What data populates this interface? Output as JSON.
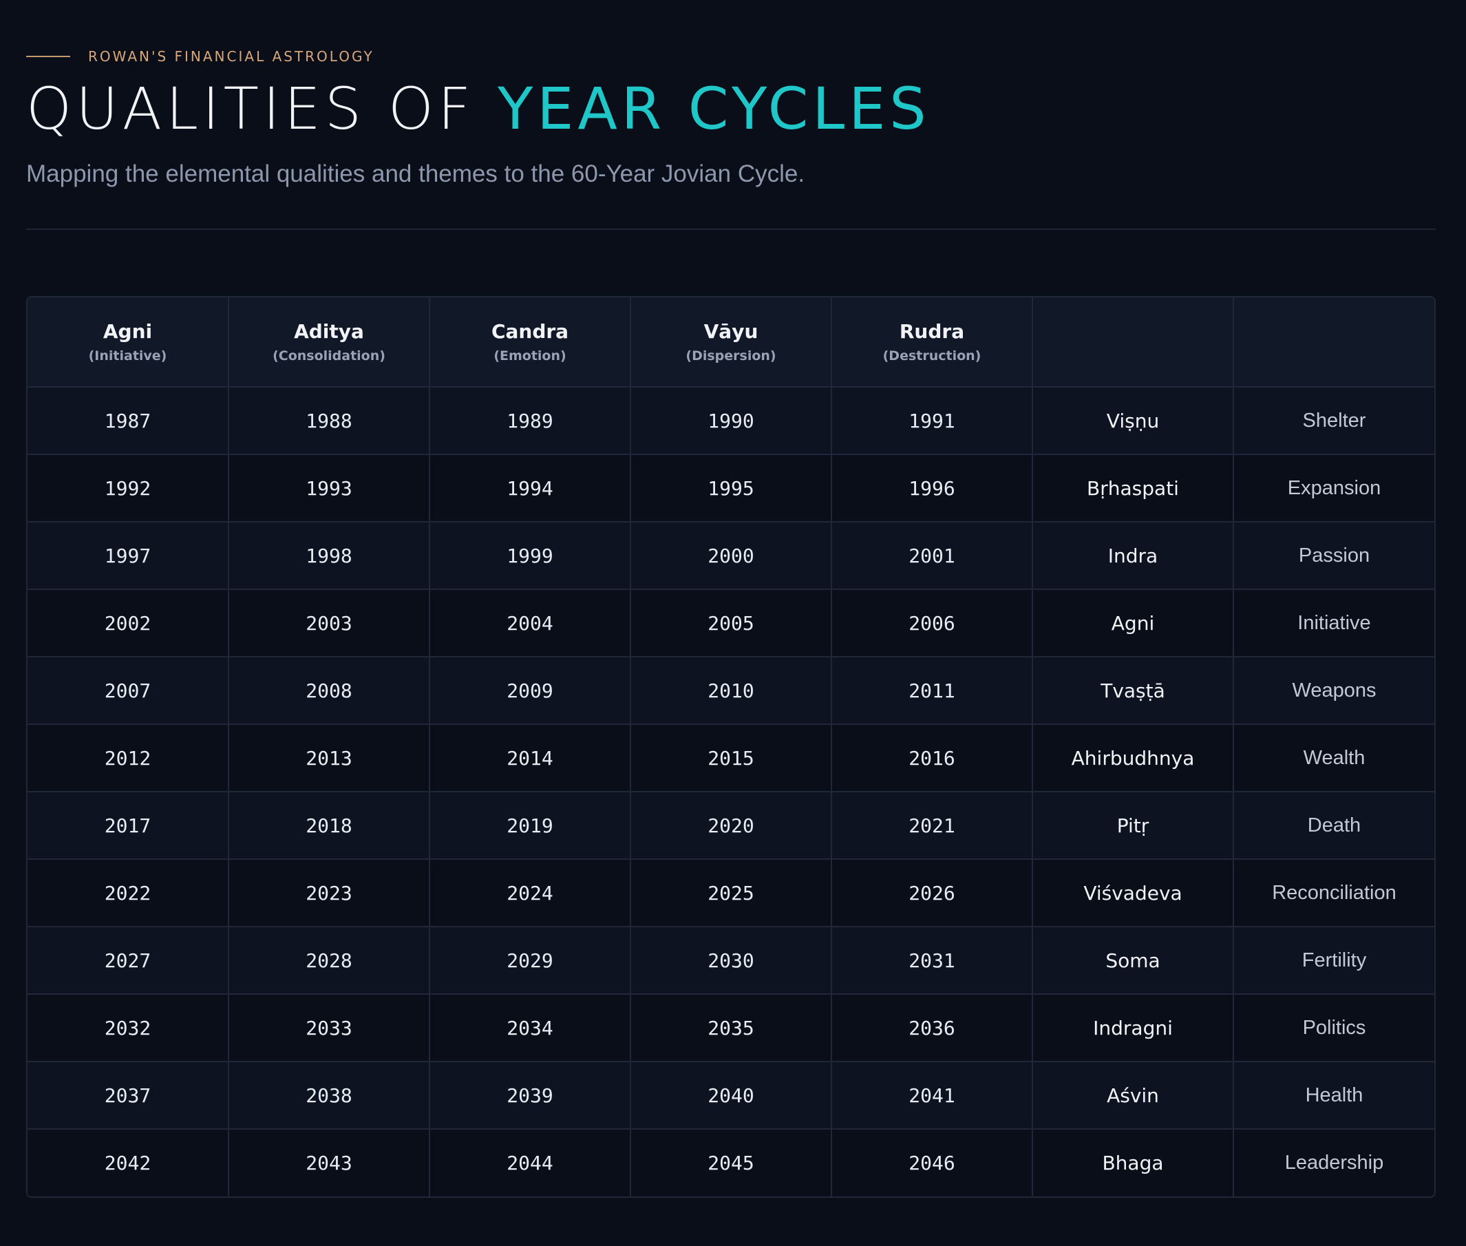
{
  "header": {
    "kicker": "ROWAN'S FINANCIAL ASTROLOGY",
    "title_part1": "QUALITIES OF ",
    "title_part2": "YEAR CYCLES",
    "subtitle": "Mapping the elemental qualities and themes to the 60-Year Jovian Cycle."
  },
  "colors": {
    "accent": "#1fc7c9",
    "kicker": "#d9a77a",
    "background": "#0a0e18"
  },
  "table": {
    "columns": [
      {
        "name": "Agni",
        "sub": "(Initiative)"
      },
      {
        "name": "Aditya",
        "sub": "(Consolidation)"
      },
      {
        "name": "Candra",
        "sub": "(Emotion)"
      },
      {
        "name": "Vāyu",
        "sub": "(Dispersion)"
      },
      {
        "name": "Rudra",
        "sub": "(Destruction)"
      },
      {
        "name": "",
        "sub": ""
      },
      {
        "name": "",
        "sub": ""
      }
    ],
    "rows": [
      {
        "years": [
          "1987",
          "1988",
          "1989",
          "1990",
          "1991"
        ],
        "deity": "Viṣṇu",
        "theme": "Shelter"
      },
      {
        "years": [
          "1992",
          "1993",
          "1994",
          "1995",
          "1996"
        ],
        "deity": "Bṛhaspati",
        "theme": "Expansion"
      },
      {
        "years": [
          "1997",
          "1998",
          "1999",
          "2000",
          "2001"
        ],
        "deity": "Indra",
        "theme": "Passion"
      },
      {
        "years": [
          "2002",
          "2003",
          "2004",
          "2005",
          "2006"
        ],
        "deity": "Agni",
        "theme": "Initiative"
      },
      {
        "years": [
          "2007",
          "2008",
          "2009",
          "2010",
          "2011"
        ],
        "deity": "Tvaṣṭā",
        "theme": "Weapons"
      },
      {
        "years": [
          "2012",
          "2013",
          "2014",
          "2015",
          "2016"
        ],
        "deity": "Ahirbudhnya",
        "theme": "Wealth"
      },
      {
        "years": [
          "2017",
          "2018",
          "2019",
          "2020",
          "2021"
        ],
        "deity": "Pitṛ",
        "theme": "Death"
      },
      {
        "years": [
          "2022",
          "2023",
          "2024",
          "2025",
          "2026"
        ],
        "deity": "Viśvadeva",
        "theme": "Reconciliation"
      },
      {
        "years": [
          "2027",
          "2028",
          "2029",
          "2030",
          "2031"
        ],
        "deity": "Soma",
        "theme": "Fertility"
      },
      {
        "years": [
          "2032",
          "2033",
          "2034",
          "2035",
          "2036"
        ],
        "deity": "Indragni",
        "theme": "Politics"
      },
      {
        "years": [
          "2037",
          "2038",
          "2039",
          "2040",
          "2041"
        ],
        "deity": "Aśvin",
        "theme": "Health"
      },
      {
        "years": [
          "2042",
          "2043",
          "2044",
          "2045",
          "2046"
        ],
        "deity": "Bhaga",
        "theme": "Leadership"
      }
    ]
  }
}
